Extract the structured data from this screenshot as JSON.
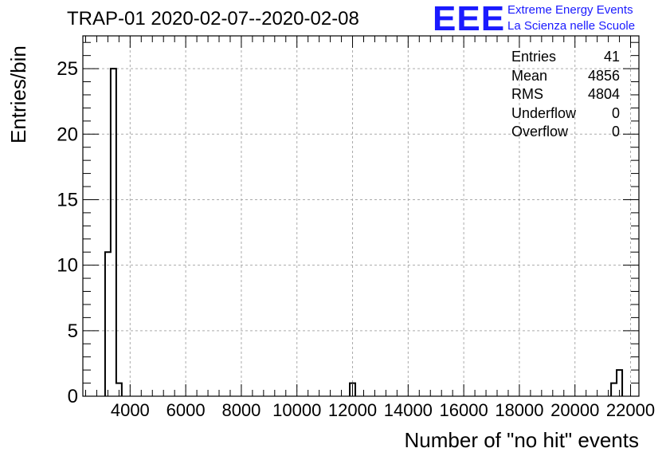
{
  "title": "TRAP-01 2020-02-07--2020-02-08",
  "logo": {
    "mark": "EEE",
    "line1": "Extreme Energy Events",
    "line2": "La Scienza nelle Scuole",
    "color": "#1a1aff"
  },
  "stats": [
    {
      "label": "Entries",
      "value": "41"
    },
    {
      "label": "Mean",
      "value": "4856"
    },
    {
      "label": "RMS",
      "value": "4804"
    },
    {
      "label": "Underflow",
      "value": "0"
    },
    {
      "label": "Overflow",
      "value": "0"
    }
  ],
  "chart_data": {
    "type": "bar",
    "title": "TRAP-01 2020-02-07--2020-02-08",
    "xlabel": "Number of \"no hit\" events",
    "ylabel": "Entries/bin",
    "xlim": [
      2300,
      22300
    ],
    "ylim": [
      0,
      27.5
    ],
    "xticks": [
      4000,
      6000,
      8000,
      10000,
      12000,
      14000,
      16000,
      18000,
      20000,
      22000
    ],
    "yticks": [
      0,
      5,
      10,
      15,
      20,
      25
    ],
    "grid": true,
    "bins": [
      {
        "x0": 3100,
        "x1": 3300,
        "count": 11
      },
      {
        "x0": 3300,
        "x1": 3500,
        "count": 25
      },
      {
        "x0": 3500,
        "x1": 3700,
        "count": 1
      },
      {
        "x0": 11900,
        "x1": 12100,
        "count": 1
      },
      {
        "x0": 21300,
        "x1": 21500,
        "count": 1
      },
      {
        "x0": 21500,
        "x1": 21700,
        "count": 2
      }
    ]
  }
}
